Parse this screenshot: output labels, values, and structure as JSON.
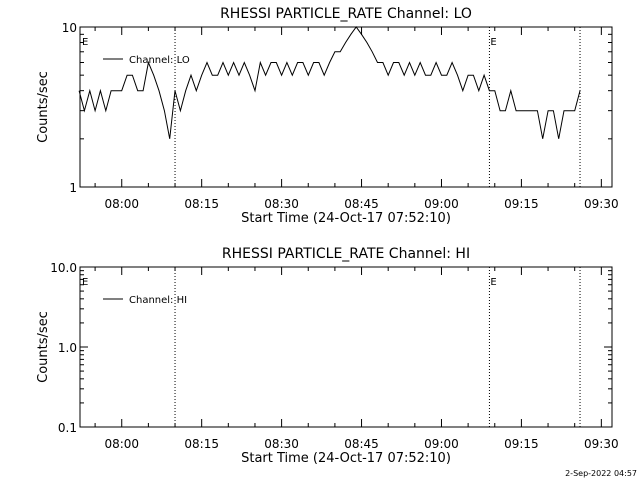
{
  "footer_text": "2-Sep-2022 04:57",
  "chart_data": [
    {
      "type": "line",
      "title": "RHESSI PARTICLE_RATE Channel: LO",
      "xlabel": "Start Time (24-Oct-17 07:52:10)",
      "ylabel": "Counts/sec",
      "yscale": "log",
      "ylim": [
        1,
        10
      ],
      "xlim": [
        "07:52:10",
        "09:32:00"
      ],
      "y_tick_labels": [
        "1",
        "10"
      ],
      "y_tick_values": [
        1,
        10
      ],
      "x_tick_labels": [
        "08:00",
        "08:15",
        "08:30",
        "08:45",
        "09:00",
        "09:15",
        "09:30"
      ],
      "x_tick_values": [
        "08:00",
        "08:15",
        "08:30",
        "08:45",
        "09:00",
        "09:15",
        "09:30"
      ],
      "event_lines": [
        "08:10",
        "09:09",
        "09:26"
      ],
      "event_markers": [
        {
          "label": "E",
          "time": "07:52"
        },
        {
          "label": "E",
          "time": "09:09"
        }
      ],
      "legend": {
        "placement": "top-left",
        "entries": [
          "Channel: LO"
        ]
      },
      "series": [
        {
          "name": "Channel: LO",
          "x": [
            "07:52",
            "07:53",
            "07:54",
            "07:55",
            "07:56",
            "07:57",
            "07:58",
            "07:59",
            "08:00",
            "08:01",
            "08:02",
            "08:03",
            "08:04",
            "08:05",
            "08:06",
            "08:07",
            "08:08",
            "08:09",
            "08:10",
            "08:11",
            "08:12",
            "08:13",
            "08:14",
            "08:15",
            "08:16",
            "08:17",
            "08:18",
            "08:19",
            "08:20",
            "08:21",
            "08:22",
            "08:23",
            "08:24",
            "08:25",
            "08:26",
            "08:27",
            "08:28",
            "08:29",
            "08:30",
            "08:31",
            "08:32",
            "08:33",
            "08:34",
            "08:35",
            "08:36",
            "08:37",
            "08:38",
            "08:39",
            "08:40",
            "08:41",
            "08:42",
            "08:43",
            "08:44",
            "08:45",
            "08:46",
            "08:47",
            "08:48",
            "08:49",
            "08:50",
            "08:51",
            "08:52",
            "08:53",
            "08:54",
            "08:55",
            "08:56",
            "08:57",
            "08:58",
            "08:59",
            "09:00",
            "09:01",
            "09:02",
            "09:03",
            "09:04",
            "09:05",
            "09:06",
            "09:07",
            "09:08",
            "09:09",
            "09:10",
            "09:11",
            "09:12",
            "09:13",
            "09:14",
            "09:15",
            "09:16",
            "09:17",
            "09:18",
            "09:19",
            "09:20",
            "09:21",
            "09:22",
            "09:23",
            "09:24",
            "09:25",
            "09:26"
          ],
          "y": [
            4,
            3,
            4,
            3,
            4,
            3,
            4,
            4,
            4,
            5,
            5,
            4,
            4,
            6,
            5,
            4,
            3,
            2,
            4,
            3,
            4,
            5,
            4,
            5,
            6,
            5,
            5,
            6,
            5,
            6,
            5,
            6,
            5,
            4,
            6,
            5,
            6,
            6,
            5,
            6,
            5,
            6,
            6,
            5,
            6,
            6,
            5,
            6,
            7,
            7,
            8,
            9,
            10,
            9,
            8,
            7,
            6,
            6,
            5,
            6,
            6,
            5,
            6,
            5,
            6,
            5,
            5,
            6,
            5,
            5,
            6,
            5,
            4,
            5,
            5,
            4,
            5,
            4,
            4,
            3,
            3,
            4,
            3,
            3,
            3,
            3,
            3,
            2,
            3,
            3,
            2,
            3,
            3,
            3,
            4
          ]
        }
      ]
    },
    {
      "type": "line",
      "title": "RHESSI PARTICLE_RATE Channel: HI",
      "xlabel": "Start Time (24-Oct-17 07:52:10)",
      "ylabel": "Counts/sec",
      "yscale": "log",
      "ylim": [
        0.1,
        10
      ],
      "xlim": [
        "07:52:10",
        "09:32:00"
      ],
      "y_tick_labels": [
        "0.1",
        "1.0",
        "10.0"
      ],
      "y_tick_values": [
        0.1,
        1,
        10
      ],
      "x_tick_labels": [
        "08:00",
        "08:15",
        "08:30",
        "08:45",
        "09:00",
        "09:15",
        "09:30"
      ],
      "x_tick_values": [
        "08:00",
        "08:15",
        "08:30",
        "08:45",
        "09:00",
        "09:15",
        "09:30"
      ],
      "event_lines": [
        "08:10",
        "09:09",
        "09:26"
      ],
      "event_markers": [
        {
          "label": "E",
          "time": "07:52"
        },
        {
          "label": "E",
          "time": "09:09"
        }
      ],
      "legend": {
        "placement": "top-left",
        "entries": [
          "Channel: HI"
        ]
      },
      "series": [
        {
          "name": "Channel: HI",
          "x": [],
          "y": []
        }
      ]
    }
  ]
}
